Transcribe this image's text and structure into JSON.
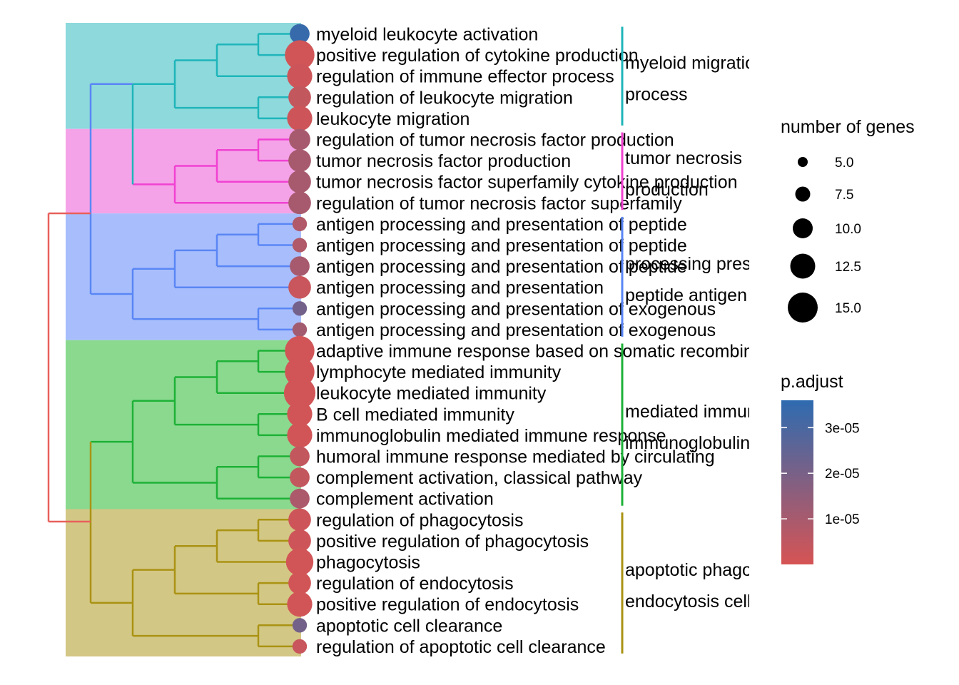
{
  "chart_data": {
    "type": "tree",
    "terms": [
      {
        "label": "myeloid leukocyte activation",
        "genes": 6.5,
        "p_adjust": 3.4e-05,
        "cluster": 0
      },
      {
        "label": "positive regulation of cytokine production",
        "genes": 14.5,
        "p_adjust": 1e-06,
        "cluster": 0
      },
      {
        "label": "regulation of immune effector process",
        "genes": 10.5,
        "p_adjust": 2e-06,
        "cluster": 0
      },
      {
        "label": "regulation of leukocyte migration",
        "genes": 8.5,
        "p_adjust": 4e-06,
        "cluster": 0
      },
      {
        "label": "leukocyte migration",
        "genes": 10.5,
        "p_adjust": 2e-06,
        "cluster": 0
      },
      {
        "label": "regulation of tumor necrosis factor production",
        "genes": 7.5,
        "p_adjust": 1e-05,
        "cluster": 1
      },
      {
        "label": "tumor necrosis factor production",
        "genes": 8.5,
        "p_adjust": 1e-05,
        "cluster": 1
      },
      {
        "label": "tumor necrosis factor superfamily cytokine production",
        "genes": 8.5,
        "p_adjust": 1e-05,
        "cluster": 1
      },
      {
        "label": "regulation of tumor necrosis factor superfamily",
        "genes": 8.5,
        "p_adjust": 1e-05,
        "cluster": 1
      },
      {
        "label": "antigen processing and presentation of peptide",
        "genes": 3.5,
        "p_adjust": 8e-06,
        "cluster": 2
      },
      {
        "label": "antigen processing and presentation of peptide",
        "genes": 3.5,
        "p_adjust": 8e-06,
        "cluster": 2
      },
      {
        "label": "antigen processing and presentation of peptide",
        "genes": 6.5,
        "p_adjust": 1e-05,
        "cluster": 2
      },
      {
        "label": "antigen processing and presentation",
        "genes": 8.5,
        "p_adjust": 3e-06,
        "cluster": 2
      },
      {
        "label": "antigen processing and presentation of exogenous",
        "genes": 3.5,
        "p_adjust": 2.1e-05,
        "cluster": 2
      },
      {
        "label": "antigen processing and presentation of exogenous",
        "genes": 3.5,
        "p_adjust": 1.1e-05,
        "cluster": 2
      },
      {
        "label": "adaptive immune response based on somatic recombination",
        "genes": 14.5,
        "p_adjust": 1e-06,
        "cluster": 3
      },
      {
        "label": "lymphocyte mediated immunity",
        "genes": 14.5,
        "p_adjust": 1e-06,
        "cluster": 3
      },
      {
        "label": "leukocyte mediated immunity",
        "genes": 16.5,
        "p_adjust": 1e-06,
        "cluster": 3
      },
      {
        "label": "B cell mediated immunity",
        "genes": 10.5,
        "p_adjust": 1e-06,
        "cluster": 3
      },
      {
        "label": "immunoglobulin mediated immune response",
        "genes": 10.5,
        "p_adjust": 1e-06,
        "cluster": 3
      },
      {
        "label": "humoral immune response mediated by circulating",
        "genes": 6.5,
        "p_adjust": 4e-06,
        "cluster": 3
      },
      {
        "label": "complement activation, classical pathway",
        "genes": 6.5,
        "p_adjust": 4e-06,
        "cluster": 3
      },
      {
        "label": "complement activation",
        "genes": 6.5,
        "p_adjust": 9e-06,
        "cluster": 3
      },
      {
        "label": "regulation of phagocytosis",
        "genes": 8.5,
        "p_adjust": 2e-06,
        "cluster": 4
      },
      {
        "label": "positive regulation of phagocytosis",
        "genes": 8.5,
        "p_adjust": 2e-06,
        "cluster": 4
      },
      {
        "label": "phagocytosis",
        "genes": 12.5,
        "p_adjust": 1e-06,
        "cluster": 4
      },
      {
        "label": "regulation of endocytosis",
        "genes": 8.5,
        "p_adjust": 1e-06,
        "cluster": 4
      },
      {
        "label": "positive regulation of endocytosis",
        "genes": 10.5,
        "p_adjust": 1e-06,
        "cluster": 4
      },
      {
        "label": "apoptotic cell clearance",
        "genes": 3.5,
        "p_adjust": 2.1e-05,
        "cluster": 4
      },
      {
        "label": "regulation of apoptotic cell clearance",
        "genes": 3.5,
        "p_adjust": 3e-06,
        "cluster": 4
      }
    ],
    "clusters": [
      {
        "labels": [
          "myeloid migration",
          "process"
        ],
        "color": "#1FB5BA",
        "fill": "#8DD9DC"
      },
      {
        "labels": [
          "tumor necrosis",
          "production"
        ],
        "color": "#F042D2",
        "fill": "#F5A3E8"
      },
      {
        "labels": [
          "processing presentation",
          "peptide antigen"
        ],
        "color": "#5A86F5",
        "fill": "#A8BEFC"
      },
      {
        "labels": [
          "mediated immunity",
          "immunoglobulin"
        ],
        "color": "#1EB137",
        "fill": "#8AD98F"
      },
      {
        "labels": [
          "apoptotic phagocytosis",
          "endocytosis cell"
        ],
        "color": "#AA9314",
        "fill": "#D3C785"
      }
    ],
    "size_legend": {
      "title": "number of genes",
      "values": [
        5.0,
        7.5,
        10.0,
        12.5,
        15.0
      ],
      "labels": [
        "5.0",
        "7.5",
        "10.0",
        "12.5",
        "15.0"
      ]
    },
    "color_legend": {
      "title": "p.adjust",
      "min": 0,
      "max": 3.6e-05,
      "low_color": "#D65454",
      "high_color": "#2E6BB0",
      "ticks": [
        1e-05,
        2e-05,
        3e-05
      ],
      "tick_labels": [
        "1e-05",
        "2e-05",
        "3e-05"
      ]
    },
    "root_color": "#E8605B"
  }
}
